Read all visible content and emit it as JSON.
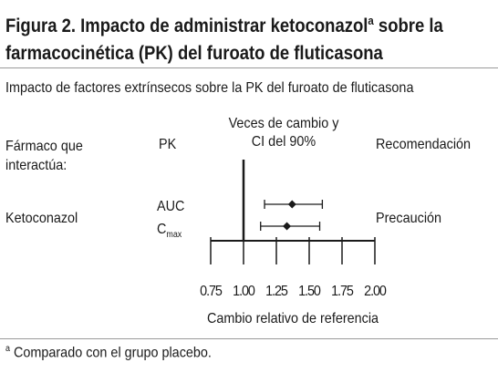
{
  "figure": {
    "title_prefix": "Figura 2. Impacto de administrar ketoconazol",
    "title_sup": "a",
    "title_rest": " sobre la farmacocinética (PK) del furoato de fluticasona",
    "subtitle": "Impacto de factores extrínsecos sobre la PK del furoato de fluticasona",
    "footnote_marker": "a",
    "footnote_text": "Comparado con el grupo placebo."
  },
  "table_headers": {
    "drug": "Fármaco que interactúa:",
    "pk": "PK",
    "change_line1": "Veces de cambio y",
    "change_line2": "CI del 90%",
    "recommendation": "Recomendación"
  },
  "row": {
    "drug": "Ketoconazol",
    "pk_auc": "AUC",
    "pk_cmax_main": "C",
    "pk_cmax_sub": "max",
    "recommendation": "Precaución"
  },
  "chart_data": {
    "type": "forest",
    "xlabel": "Cambio relativo de referencia",
    "xlim": [
      0.75,
      2.0
    ],
    "xticks": [
      0.75,
      1.0,
      1.25,
      1.5,
      1.75,
      2.0
    ],
    "xtick_labels": [
      "0.75",
      "1.00",
      "1.25",
      "1.50",
      "1.75",
      "2.00"
    ],
    "reference_line": 1.0,
    "series": [
      {
        "name": "AUC",
        "estimate": 1.37,
        "ci_low": 1.16,
        "ci_high": 1.6
      },
      {
        "name": "Cmax",
        "estimate": 1.33,
        "ci_low": 1.13,
        "ci_high": 1.58
      }
    ],
    "colors": {
      "ink": "#1a1a1a"
    }
  }
}
